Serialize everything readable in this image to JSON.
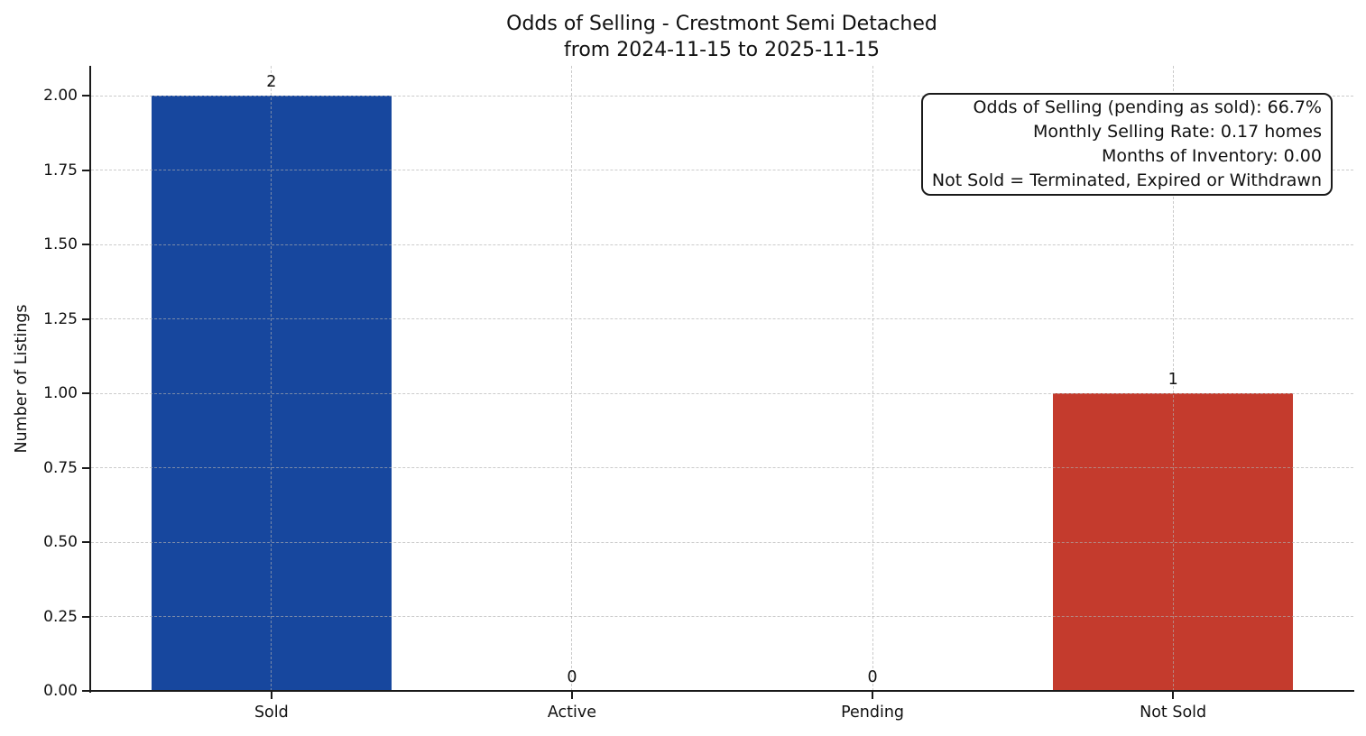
{
  "chart_data": {
    "type": "bar",
    "title": "Odds of Selling - Crestmont Semi Detached",
    "subtitle": "from 2024-11-15 to 2025-11-15",
    "categories": [
      "Sold",
      "Active",
      "Pending",
      "Not Sold"
    ],
    "values": [
      2,
      0,
      0,
      1
    ],
    "bar_colors": [
      "#17479e",
      null,
      null,
      "#c43b2d"
    ],
    "ylabel": "Number of Listings",
    "yticks": [
      "0.00",
      "0.25",
      "0.50",
      "0.75",
      "1.00",
      "1.25",
      "1.50",
      "1.75",
      "2.00"
    ],
    "ylim": [
      0,
      2.1
    ],
    "grid": "dashed light-gray gridlines on both axes, drawn above bars",
    "legend_position": "none",
    "annotation": {
      "lines": [
        "Odds of Selling (pending as sold): 66.7%",
        "Monthly Selling Rate: 0.17 homes",
        "Months of Inventory: 0.00",
        "Not Sold = Terminated, Expired or Withdrawn"
      ]
    },
    "colors": {
      "sold_bar": "#17479e",
      "not_sold_bar": "#c43b2d",
      "axis": "#1a1a1a",
      "grid": "#d9d9d9",
      "background": "#ffffff"
    }
  }
}
